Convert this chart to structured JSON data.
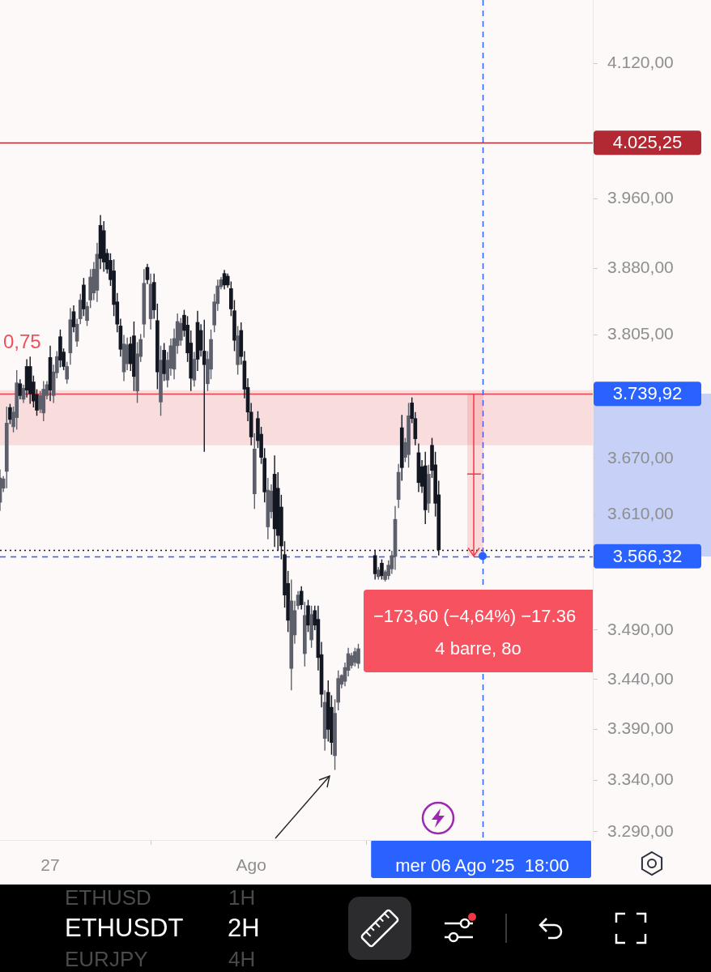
{
  "chart_data": {
    "type": "candlestick",
    "title": "ETHUSDT",
    "subtitle": "2H",
    "x": [
      "2025-07-25T18:00",
      "2025-07-25T20:00",
      "2025-07-25T22:00",
      "2025-07-26T00:00",
      "2025-07-26T02:00",
      "2025-07-26T04:00",
      "2025-07-26T06:00",
      "2025-07-26T08:00",
      "2025-07-26T10:00",
      "2025-07-26T12:00",
      "2025-07-26T14:00",
      "2025-07-26T16:00",
      "2025-07-26T18:00",
      "2025-07-26T20:00",
      "2025-07-26T22:00",
      "2025-07-27T00:00",
      "2025-07-27T02:00",
      "2025-07-27T04:00",
      "2025-07-27T06:00",
      "2025-07-27T08:00",
      "2025-07-27T10:00",
      "2025-07-27T12:00",
      "2025-07-27T14:00",
      "2025-07-27T16:00",
      "2025-07-27T18:00",
      "2025-07-27T20:00",
      "2025-07-27T22:00",
      "2025-07-28T00:00",
      "2025-07-28T02:00",
      "2025-07-28T04:00",
      "2025-07-28T06:00",
      "2025-07-28T08:00",
      "2025-07-28T10:00",
      "2025-07-28T12:00",
      "2025-07-28T14:00",
      "2025-07-28T16:00",
      "2025-07-28T18:00",
      "2025-07-28T20:00",
      "2025-07-28T22:00",
      "2025-07-29T00:00",
      "2025-07-29T02:00",
      "2025-07-29T04:00",
      "2025-07-29T06:00",
      "2025-07-29T08:00",
      "2025-07-29T10:00",
      "2025-07-29T12:00",
      "2025-07-29T14:00",
      "2025-07-29T16:00",
      "2025-07-29T18:00",
      "2025-07-29T20:00",
      "2025-07-29T22:00",
      "2025-07-30T00:00",
      "2025-07-30T02:00",
      "2025-07-30T04:00",
      "2025-07-30T06:00",
      "2025-07-30T08:00",
      "2025-07-30T10:00",
      "2025-07-30T12:00",
      "2025-07-30T14:00",
      "2025-07-30T16:00",
      "2025-07-30T18:00",
      "2025-07-30T20:00",
      "2025-07-30T22:00",
      "2025-07-31T00:00",
      "2025-07-31T02:00",
      "2025-07-31T04:00",
      "2025-07-31T06:00",
      "2025-07-31T08:00",
      "2025-07-31T10:00",
      "2025-07-31T12:00",
      "2025-07-31T14:00",
      "2025-07-31T16:00",
      "2025-07-31T18:00",
      "2025-07-31T20:00",
      "2025-07-31T22:00",
      "2025-08-01T00:00",
      "2025-08-01T02:00",
      "2025-08-01T04:00",
      "2025-08-01T06:00",
      "2025-08-01T08:00",
      "2025-08-01T10:00",
      "2025-08-01T12:00",
      "2025-08-01T14:00",
      "2025-08-01T16:00",
      "2025-08-01T18:00",
      "2025-08-01T20:00",
      "2025-08-01T22:00",
      "2025-08-02T00:00",
      "2025-08-02T02:00",
      "2025-08-02T04:00",
      "2025-08-02T06:00",
      "2025-08-02T08:00",
      "2025-08-02T10:00",
      "2025-08-02T12:00",
      "2025-08-02T14:00",
      "2025-08-02T16:00",
      "2025-08-02T18:00",
      "2025-08-02T20:00",
      "2025-08-02T22:00",
      "2025-08-03T00:00",
      "2025-08-03T02:00",
      "2025-08-03T04:00",
      "2025-08-03T06:00",
      "2025-08-03T08:00",
      "2025-08-03T10:00",
      "2025-08-03T12:00",
      "2025-08-03T14:00",
      "2025-08-03T16:00",
      "2025-08-04T02:00",
      "2025-08-04T04:00",
      "2025-08-04T06:00",
      "2025-08-04T08:00",
      "2025-08-04T10:00",
      "2025-08-04T12:00",
      "2025-08-04T14:00",
      "2025-08-04T16:00",
      "2025-08-04T18:00",
      "2025-08-04T20:00",
      "2025-08-04T22:00",
      "2025-08-05T00:00",
      "2025-08-05T02:00",
      "2025-08-05T04:00",
      "2025-08-05T06:00",
      "2025-08-05T08:00",
      "2025-08-05T10:00",
      "2025-08-05T12:00",
      "2025-08-05T14:00",
      "2025-08-05T16:00"
    ],
    "ohlc": [
      [
        3623,
        3658,
        3614,
        3649
      ],
      [
        3638,
        3651,
        3634,
        3648
      ],
      [
        3656,
        3726,
        3638,
        3708
      ],
      [
        3725,
        3729,
        3707,
        3712
      ],
      [
        3704,
        3726,
        3698,
        3720
      ],
      [
        3714,
        3766,
        3701,
        3752
      ],
      [
        3751,
        3756,
        3734,
        3738
      ],
      [
        3734,
        3750,
        3730,
        3746
      ],
      [
        3770,
        3778,
        3736,
        3744
      ],
      [
        3770,
        3781,
        3729,
        3740
      ],
      [
        3753,
        3760,
        3725,
        3732
      ],
      [
        3739,
        3745,
        3716,
        3722
      ],
      [
        3723,
        3743,
        3719,
        3738
      ],
      [
        3719,
        3754,
        3710,
        3745
      ],
      [
        3738,
        3754,
        3734,
        3750
      ],
      [
        3780,
        3793,
        3732,
        3744
      ],
      [
        3738,
        3772,
        3730,
        3764
      ],
      [
        3763,
        3787,
        3757,
        3781
      ],
      [
        3803,
        3811,
        3769,
        3777
      ],
      [
        3786,
        3790,
        3766,
        3770
      ],
      [
        3756,
        3775,
        3751,
        3770
      ],
      [
        3785,
        3835,
        3772,
        3822
      ],
      [
        3831,
        3838,
        3808,
        3814
      ],
      [
        3798,
        3823,
        3792,
        3817
      ],
      [
        3823,
        3851,
        3817,
        3844
      ],
      [
        3861,
        3869,
        3826,
        3834
      ],
      [
        3821,
        3842,
        3815,
        3837
      ],
      [
        3844,
        3879,
        3835,
        3870
      ],
      [
        3852,
        3887,
        3844,
        3879
      ],
      [
        3855,
        3909,
        3842,
        3896
      ],
      [
        3929,
        3941,
        3879,
        3891
      ],
      [
        3923,
        3934,
        3876,
        3887
      ],
      [
        3897,
        3902,
        3874,
        3879
      ],
      [
        3889,
        3897,
        3860,
        3867
      ],
      [
        3877,
        3890,
        3826,
        3839
      ],
      [
        3842,
        3852,
        3808,
        3817
      ],
      [
        3815,
        3823,
        3781,
        3789
      ],
      [
        3764,
        3805,
        3754,
        3795
      ],
      [
        3773,
        3802,
        3766,
        3794
      ],
      [
        3795,
        3803,
        3765,
        3773
      ],
      [
        3804,
        3820,
        3743,
        3759
      ],
      [
        3743,
        3797,
        3730,
        3784
      ],
      [
        3781,
        3806,
        3775,
        3800
      ],
      [
        3817,
        3879,
        3802,
        3863
      ],
      [
        3881,
        3885,
        3862,
        3867
      ],
      [
        3823,
        3874,
        3811,
        3862
      ],
      [
        3864,
        3874,
        3823,
        3833
      ],
      [
        3821,
        3840,
        3745,
        3764
      ],
      [
        3731,
        3793,
        3716,
        3777
      ],
      [
        3788,
        3796,
        3754,
        3762
      ],
      [
        3755,
        3786,
        3747,
        3777
      ],
      [
        3768,
        3801,
        3760,
        3793
      ],
      [
        3767,
        3812,
        3756,
        3801
      ],
      [
        3793,
        3829,
        3784,
        3820
      ],
      [
        3799,
        3824,
        3793,
        3818
      ],
      [
        3827,
        3833,
        3803,
        3810
      ],
      [
        3816,
        3826,
        3775,
        3785
      ],
      [
        3796,
        3810,
        3743,
        3757
      ],
      [
        3755,
        3786,
        3748,
        3778
      ],
      [
        3819,
        3832,
        3765,
        3778
      ],
      [
        3810,
        3817,
        3781,
        3788
      ],
      [
        3787,
        3822,
        3677,
        3772
      ],
      [
        3751,
        3787,
        3743,
        3778
      ],
      [
        3767,
        3811,
        3756,
        3800
      ],
      [
        3816,
        3851,
        3808,
        3842
      ],
      [
        3840,
        3867,
        3832,
        3860
      ],
      [
        3859,
        3870,
        3856,
        3867
      ],
      [
        3874,
        3878,
        3856,
        3861
      ],
      [
        3871,
        3874,
        3858,
        3861
      ],
      [
        3857,
        3865,
        3826,
        3834
      ],
      [
        3832,
        3844,
        3787,
        3799
      ],
      [
        3772,
        3815,
        3761,
        3804
      ],
      [
        3810,
        3819,
        3772,
        3781
      ],
      [
        3776,
        3787,
        3735,
        3745
      ],
      [
        3747,
        3757,
        3710,
        3720
      ],
      [
        3720,
        3730,
        3684,
        3693
      ],
      [
        3632,
        3697,
        3616,
        3680
      ],
      [
        3713,
        3721,
        3681,
        3689
      ],
      [
        3696,
        3704,
        3664,
        3671
      ],
      [
        3670,
        3681,
        3623,
        3634
      ],
      [
        3597,
        3649,
        3584,
        3636
      ],
      [
        3613,
        3642,
        3606,
        3635
      ],
      [
        3653,
        3673,
        3576,
        3595
      ],
      [
        3638,
        3655,
        3572,
        3588
      ],
      [
        3618,
        3631,
        3563,
        3577
      ],
      [
        3568,
        3582,
        3513,
        3526
      ],
      [
        3538,
        3551,
        3488,
        3500
      ],
      [
        3451,
        3542,
        3429,
        3520
      ],
      [
        3485,
        3520,
        3476,
        3510
      ],
      [
        3515,
        3530,
        3511,
        3526
      ],
      [
        3530,
        3535,
        3511,
        3516
      ],
      [
        3466,
        3519,
        3453,
        3505
      ],
      [
        3515,
        3521,
        3488,
        3495
      ],
      [
        3480,
        3515,
        3472,
        3506
      ],
      [
        3510,
        3515,
        3490,
        3495
      ],
      [
        3501,
        3515,
        3449,
        3462
      ],
      [
        3465,
        3478,
        3412,
        3425
      ],
      [
        3381,
        3429,
        3369,
        3417
      ],
      [
        3427,
        3439,
        3378,
        3390
      ],
      [
        3412,
        3424,
        3365,
        3377
      ],
      [
        3364,
        3420,
        3350,
        3406
      ],
      [
        3417,
        3449,
        3409,
        3441
      ],
      [
        3435,
        3445,
        3431,
        3444
      ],
      [
        3438,
        3457,
        3433,
        3452
      ],
      [
        3449,
        3472,
        3443,
        3466
      ],
      [
        3454,
        3467,
        3451,
        3464
      ],
      [
        3457,
        3472,
        3453,
        3468
      ],
      [
        3456,
        3476,
        3451,
        3471
      ],
      [
        3567,
        3573,
        3542,
        3548
      ],
      [
        3545,
        3555,
        3542,
        3552
      ],
      [
        3559,
        3563,
        3542,
        3546
      ],
      [
        3542,
        3552,
        3540,
        3550
      ],
      [
        3546,
        3562,
        3542,
        3557
      ],
      [
        3553,
        3572,
        3548,
        3567
      ],
      [
        3566,
        3619,
        3552,
        3605
      ],
      [
        3626,
        3664,
        3617,
        3655
      ],
      [
        3703,
        3717,
        3646,
        3660
      ],
      [
        3671,
        3692,
        3666,
        3687
      ],
      [
        3674,
        3730,
        3660,
        3716
      ],
      [
        3730,
        3736,
        3708,
        3713
      ],
      [
        3713,
        3720,
        3684,
        3691
      ],
      [
        3676,
        3686,
        3634,
        3644
      ],
      [
        3661,
        3668,
        3633,
        3640
      ],
      [
        3662,
        3677,
        3600,
        3615
      ],
      [
        3622,
        3663,
        3612,
        3653
      ],
      [
        3684,
        3692,
        3649,
        3657
      ],
      [
        3663,
        3677,
        3608,
        3622
      ],
      [
        3631,
        3646,
        3567,
        3573
      ]
    ],
    "colors": [
      "#5d606b",
      "#5d606b",
      "#5d606b",
      "#131722",
      "#5d606b",
      "#5d606b",
      "#131722",
      "#5d606b",
      "#131722",
      "#131722",
      "#131722",
      "#131722",
      "#5d606b",
      "#5d606b",
      "#5d606b",
      "#131722",
      "#5d606b",
      "#5d606b",
      "#131722",
      "#131722",
      "#5d606b",
      "#5d606b",
      "#131722",
      "#5d606b",
      "#5d606b",
      "#131722",
      "#5d606b",
      "#5d606b",
      "#5d606b",
      "#5d606b",
      "#131722",
      "#131722",
      "#131722",
      "#131722",
      "#131722",
      "#131722",
      "#131722",
      "#5d606b",
      "#5d606b",
      "#131722",
      "#131722",
      "#5d606b",
      "#5d606b",
      "#5d606b",
      "#131722",
      "#5d606b",
      "#131722",
      "#131722",
      "#5d606b",
      "#131722",
      "#5d606b",
      "#5d606b",
      "#5d606b",
      "#5d606b",
      "#5d606b",
      "#131722",
      "#131722",
      "#131722",
      "#5d606b",
      "#131722",
      "#131722",
      "#131722",
      "#5d606b",
      "#5d606b",
      "#5d606b",
      "#5d606b",
      "#5d606b",
      "#131722",
      "#131722",
      "#131722",
      "#131722",
      "#5d606b",
      "#131722",
      "#131722",
      "#131722",
      "#131722",
      "#5d606b",
      "#131722",
      "#131722",
      "#131722",
      "#5d606b",
      "#5d606b",
      "#131722",
      "#131722",
      "#131722",
      "#131722",
      "#131722",
      "#5d606b",
      "#5d606b",
      "#5d606b",
      "#131722",
      "#5d606b",
      "#131722",
      "#5d606b",
      "#131722",
      "#131722",
      "#131722",
      "#5d606b",
      "#131722",
      "#131722",
      "#5d606b",
      "#5d606b",
      "#5d606b",
      "#5d606b",
      "#5d606b",
      "#5d606b",
      "#5d606b",
      "#5d606b",
      "#131722",
      "#5d606b",
      "#131722",
      "#5d606b",
      "#5d606b",
      "#5d606b",
      "#5d606b",
      "#5d606b",
      "#131722",
      "#5d606b",
      "#5d606b",
      "#131722",
      "#131722",
      "#131722",
      "#131722",
      "#131722",
      "#5d606b",
      "#131722",
      "#131722",
      "#131722"
    ],
    "xlim": [
      "2025-07-25T18:00",
      "2025-08-09T12:00"
    ],
    "xticks": [
      {
        "value": "2025-07-27",
        "label": "27"
      },
      {
        "value": "2025-08-01",
        "label": "Ago"
      },
      {
        "value": "2025-08-06T18:00",
        "label": "mer 06 Ago '25  18:00"
      }
    ],
    "ylim": [
      3282,
      4197
    ],
    "log": true,
    "yticks": [
      {
        "value": 3290,
        "label": "3.290,00"
      },
      {
        "value": 3340,
        "label": "3.340,00"
      },
      {
        "value": 3390,
        "label": "3.390,00"
      },
      {
        "value": 3440,
        "label": "3.440,00"
      },
      {
        "value": 3490,
        "label": "3.490,00"
      },
      {
        "value": 3610,
        "label": "3.610,00"
      },
      {
        "value": 3670,
        "label": "3.670,00"
      },
      {
        "value": 3805,
        "label": "3.805,00"
      },
      {
        "value": 3880,
        "label": "3.880,00"
      },
      {
        "value": 3960,
        "label": "3.960,00"
      },
      {
        "value": 4120,
        "label": "4.120,00"
      }
    ],
    "bands": [
      {
        "axis": "y",
        "from": 3684,
        "to": 3744,
        "color": "#f9dcdc"
      }
    ],
    "ref_lines": [
      {
        "axis": "y",
        "value": 4025.25,
        "label": "4.025,25",
        "color": "#b22833"
      },
      {
        "axis": "y",
        "value": 3739.92,
        "color": "#e5414f"
      },
      {
        "axis": "y",
        "value": 3573,
        "color": "#131722",
        "line_style": "dotted"
      },
      {
        "axis": "y",
        "value": 3566.32,
        "label": "3.566,32",
        "color": "#2962ff",
        "line_style": "dashed"
      },
      {
        "axis": "x",
        "value": "2025-08-06T18:00",
        "color": "#2962ff",
        "line_style": "dashed"
      }
    ],
    "annotations": [
      "−173,60 (−4,64%) −17.36",
      "4 barre, 8o",
      "0,75",
      "3.739,92",
      "ETHUSD",
      "1H",
      "EURJPY",
      "4H"
    ]
  }
}
